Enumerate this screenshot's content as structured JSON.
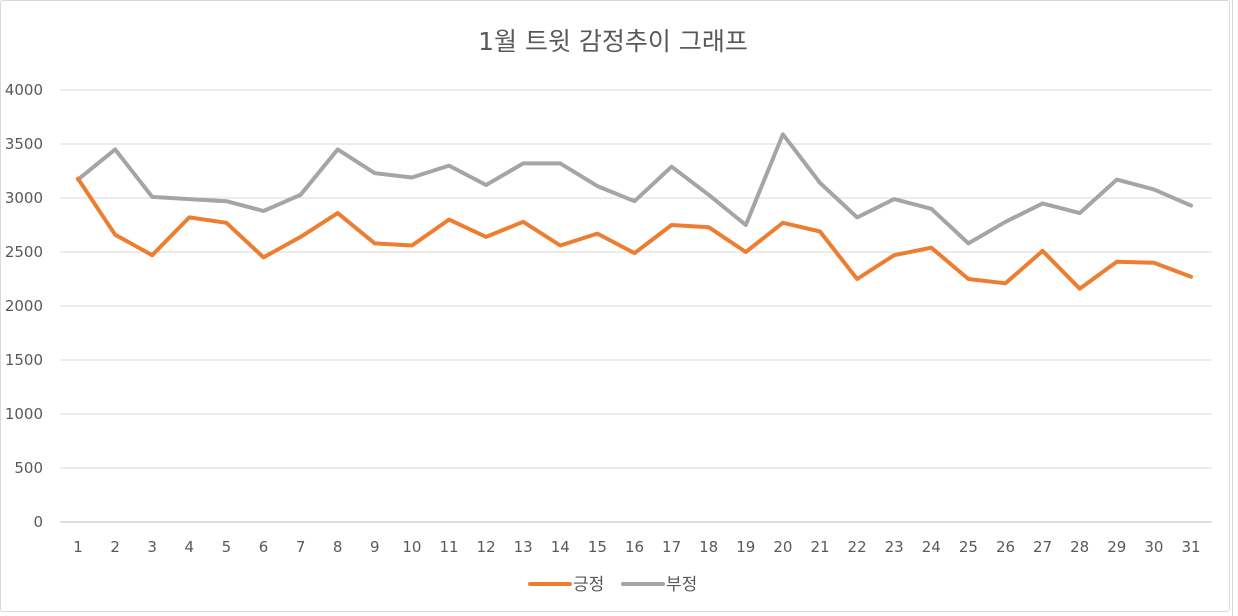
{
  "chart_data": {
    "type": "line",
    "title": "1월 트윗 감정추이 그래프",
    "xlabel": "",
    "ylabel": "",
    "categories": [
      "1",
      "2",
      "3",
      "4",
      "5",
      "6",
      "7",
      "8",
      "9",
      "10",
      "11",
      "12",
      "13",
      "14",
      "15",
      "16",
      "17",
      "18",
      "19",
      "20",
      "21",
      "22",
      "23",
      "24",
      "25",
      "26",
      "27",
      "28",
      "29",
      "30",
      "31"
    ],
    "ylim": [
      0,
      4000
    ],
    "yticks": [
      0,
      500,
      1000,
      1500,
      2000,
      2500,
      3000,
      3500,
      4000
    ],
    "ytick_labels": [
      "0",
      "500",
      "1000",
      "1500",
      "2000",
      "2500",
      "3000",
      "3500",
      "4000"
    ],
    "grid": true,
    "legend_position": "bottom",
    "series": [
      {
        "name": "긍정",
        "color": "#ED7D31",
        "values": [
          3180,
          2660,
          2470,
          2820,
          2770,
          2450,
          2640,
          2860,
          2580,
          2560,
          2800,
          2640,
          2780,
          2560,
          2670,
          2490,
          2750,
          2730,
          2500,
          2770,
          2690,
          2250,
          2470,
          2540,
          2250,
          2210,
          2510,
          2160,
          2410,
          2400,
          2270
        ]
      },
      {
        "name": "부정",
        "color": "#A5A5A5",
        "values": [
          3170,
          3450,
          3010,
          2990,
          2970,
          2880,
          3030,
          3450,
          3230,
          3190,
          3300,
          3120,
          3320,
          3320,
          3110,
          2970,
          3290,
          3030,
          2750,
          3590,
          3140,
          2820,
          2990,
          2900,
          2580,
          2780,
          2950,
          2860,
          3170,
          3080,
          2930
        ]
      }
    ]
  },
  "style": {
    "grid_color": "#d9d9d9",
    "axis_color": "#bfbfbf",
    "text_color": "#595959"
  }
}
